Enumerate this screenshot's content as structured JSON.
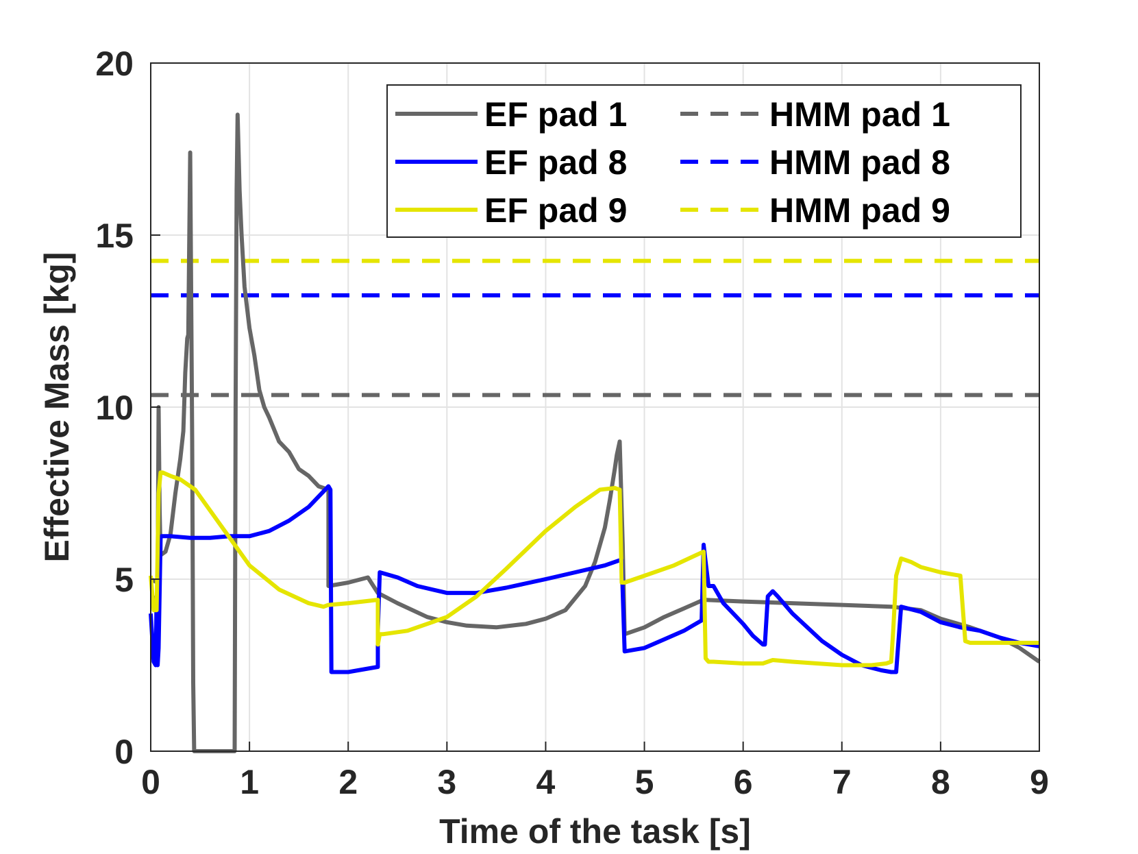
{
  "chart_data": {
    "type": "line",
    "xlabel": "Time of the task [s]",
    "ylabel": "Effective Mass [kg]",
    "xlim": [
      0,
      9
    ],
    "ylim": [
      0,
      20
    ],
    "xticks": [
      0,
      1,
      2,
      3,
      4,
      5,
      6,
      7,
      8,
      9
    ],
    "yticks": [
      0,
      5,
      10,
      15,
      20
    ],
    "grid": true,
    "legend_position": "top-right",
    "series": [
      {
        "name": "EF pad 1",
        "color": "#666666",
        "style": "solid",
        "x": [
          0,
          0.07,
          0.08,
          0.09,
          0.1,
          0.15,
          0.2,
          0.25,
          0.3,
          0.33,
          0.35,
          0.37,
          0.38,
          0.4,
          0.42,
          0.43,
          0.44,
          0.85,
          0.86,
          0.87,
          0.88,
          0.9,
          0.92,
          0.95,
          1.0,
          1.05,
          1.1,
          1.15,
          1.2,
          1.3,
          1.4,
          1.5,
          1.6,
          1.7,
          1.8,
          1.8,
          2.0,
          2.2,
          2.3,
          2.5,
          2.8,
          3.0,
          3.2,
          3.5,
          3.8,
          4.0,
          4.2,
          4.4,
          4.5,
          4.6,
          4.65,
          4.7,
          4.72,
          4.75,
          4.78,
          4.8,
          5.0,
          5.2,
          5.4,
          5.6,
          6.0,
          6.5,
          7.0,
          7.5,
          7.8,
          8.0,
          8.3,
          8.6,
          8.8,
          9.0
        ],
        "y": [
          5.0,
          4.9,
          10.0,
          7.0,
          5.7,
          5.8,
          6.3,
          7.5,
          8.5,
          9.3,
          11.0,
          12.0,
          12.1,
          17.4,
          9.0,
          2.0,
          0,
          0,
          10.0,
          16.3,
          18.5,
          16.3,
          15.0,
          13.5,
          12.3,
          11.5,
          10.5,
          10.0,
          9.7,
          9.0,
          8.7,
          8.2,
          8.0,
          7.7,
          7.6,
          4.8,
          4.9,
          5.05,
          4.6,
          4.3,
          3.9,
          3.75,
          3.65,
          3.6,
          3.7,
          3.85,
          4.1,
          4.8,
          5.5,
          6.5,
          7.3,
          8.2,
          8.6,
          9.0,
          6.0,
          3.4,
          3.6,
          3.9,
          4.15,
          4.4,
          4.35,
          4.3,
          4.25,
          4.2,
          4.1,
          3.85,
          3.6,
          3.3,
          3.0,
          2.6
        ]
      },
      {
        "name": "EF pad 8",
        "color": "#0000ff",
        "style": "solid",
        "x": [
          0,
          0.03,
          0.05,
          0.06,
          0.07,
          0.08,
          0.1,
          0.11,
          0.2,
          0.4,
          0.6,
          0.8,
          1.0,
          1.2,
          1.4,
          1.6,
          1.7,
          1.8,
          1.82,
          1.83,
          2.0,
          2.2,
          2.3,
          2.3,
          2.32,
          2.5,
          2.7,
          3.0,
          3.3,
          3.6,
          4.0,
          4.3,
          4.6,
          4.75,
          4.77,
          4.8,
          5.0,
          5.2,
          5.4,
          5.58,
          5.6,
          5.62,
          5.65,
          5.7,
          5.8,
          5.9,
          6.0,
          6.1,
          6.2,
          6.22,
          6.25,
          6.3,
          6.35,
          6.5,
          6.8,
          7.0,
          7.2,
          7.4,
          7.5,
          7.55,
          7.6,
          7.8,
          8.0,
          8.2,
          8.4,
          8.6,
          8.8,
          9.0
        ],
        "y": [
          4.0,
          2.6,
          2.5,
          4.5,
          2.5,
          3.0,
          6.2,
          6.25,
          6.25,
          6.2,
          6.2,
          6.25,
          6.25,
          6.4,
          6.7,
          7.1,
          7.4,
          7.7,
          7.6,
          2.3,
          2.3,
          2.4,
          2.45,
          3.5,
          5.2,
          5.05,
          4.8,
          4.6,
          4.6,
          4.75,
          5.0,
          5.2,
          5.4,
          5.55,
          5.55,
          2.9,
          3.0,
          3.25,
          3.5,
          3.8,
          6.0,
          5.5,
          4.8,
          4.8,
          4.3,
          4.0,
          3.7,
          3.35,
          3.1,
          3.1,
          4.5,
          4.65,
          4.5,
          4.0,
          3.2,
          2.8,
          2.5,
          2.35,
          2.3,
          2.3,
          4.2,
          4.05,
          3.75,
          3.6,
          3.5,
          3.3,
          3.15,
          3.05
        ]
      },
      {
        "name": "EF pad 9",
        "color": "#e5e500",
        "style": "solid",
        "x": [
          0,
          0.03,
          0.06,
          0.08,
          0.1,
          0.12,
          0.2,
          0.3,
          0.45,
          0.6,
          0.8,
          1.0,
          1.3,
          1.6,
          1.75,
          1.8,
          2.0,
          2.3,
          2.3,
          2.32,
          2.35,
          2.6,
          3.0,
          3.3,
          3.6,
          4.0,
          4.3,
          4.55,
          4.7,
          4.75,
          4.77,
          4.8,
          5.0,
          5.3,
          5.6,
          5.62,
          5.65,
          5.7,
          6.0,
          6.2,
          6.3,
          6.5,
          7.0,
          7.3,
          7.45,
          7.5,
          7.52,
          7.55,
          7.6,
          7.65,
          7.7,
          7.8,
          8.0,
          8.2,
          8.25,
          8.3,
          8.6,
          9.0
        ],
        "y": [
          5.1,
          4.1,
          4.1,
          7.5,
          8.1,
          8.1,
          8.0,
          7.9,
          7.6,
          7.0,
          6.2,
          5.4,
          4.7,
          4.3,
          4.2,
          4.25,
          4.3,
          4.4,
          3.1,
          3.4,
          3.4,
          3.5,
          3.9,
          4.5,
          5.3,
          6.4,
          7.1,
          7.6,
          7.65,
          7.6,
          4.9,
          4.9,
          5.1,
          5.4,
          5.8,
          2.7,
          2.6,
          2.6,
          2.55,
          2.55,
          2.65,
          2.6,
          2.5,
          2.5,
          2.55,
          2.6,
          3.5,
          5.1,
          5.6,
          5.55,
          5.5,
          5.35,
          5.2,
          5.1,
          3.2,
          3.15,
          3.15,
          3.15
        ]
      },
      {
        "name": "HMM pad 1",
        "color": "#666666",
        "style": "dashed",
        "x": [
          0,
          9
        ],
        "y": [
          10.35,
          10.35
        ]
      },
      {
        "name": "HMM pad 8",
        "color": "#0000ff",
        "style": "dashed",
        "x": [
          0,
          9
        ],
        "y": [
          13.25,
          13.25
        ]
      },
      {
        "name": "HMM pad 9",
        "color": "#e5e500",
        "style": "dashed",
        "x": [
          0,
          9
        ],
        "y": [
          14.25,
          14.25
        ]
      }
    ],
    "legend": [
      {
        "label": "EF pad 1"
      },
      {
        "label": "HMM pad 1"
      },
      {
        "label": "EF pad 8"
      },
      {
        "label": "HMM pad 8"
      },
      {
        "label": "EF pad 9"
      },
      {
        "label": "HMM pad 9"
      }
    ]
  }
}
